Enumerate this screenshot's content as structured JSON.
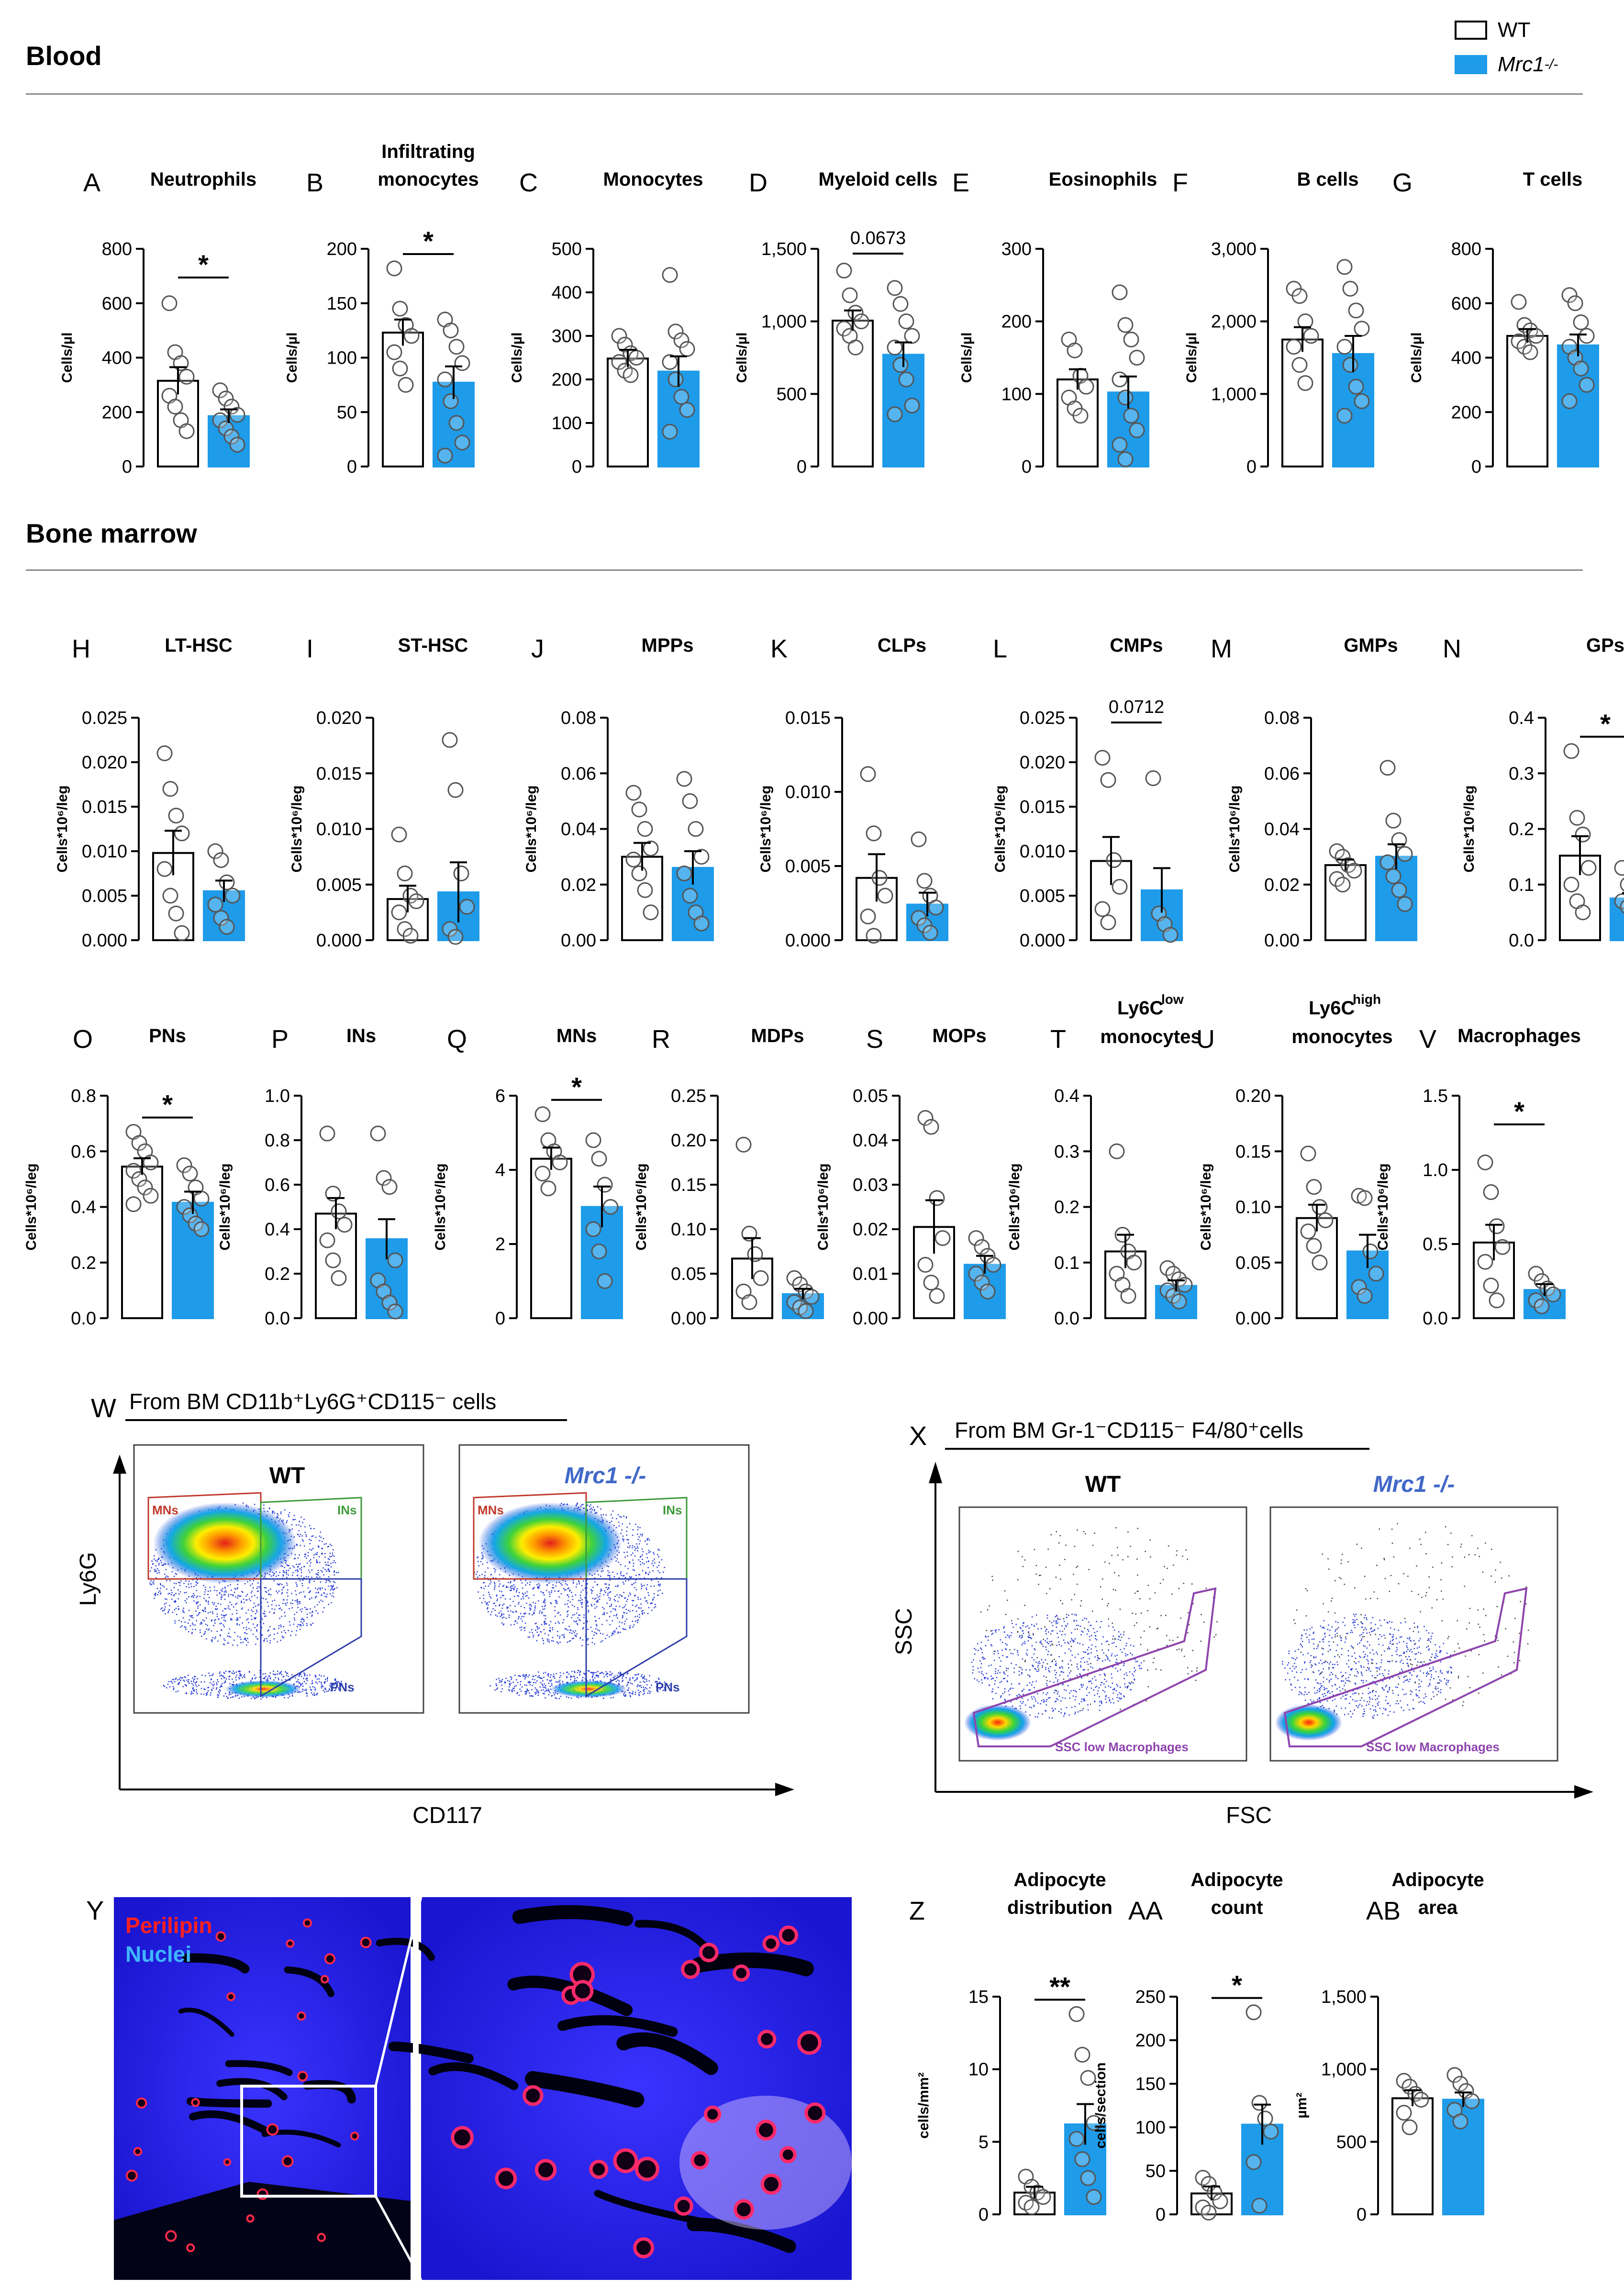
{
  "legend": {
    "wt": "WT",
    "ko_prefix": "Mrc1",
    "ko_sup": "-/-"
  },
  "colors": {
    "wt_fill": "#ffffff",
    "ko_fill": "#1e9be9",
    "edge": "#000000"
  },
  "sections": {
    "blood": "Blood",
    "bone_marrow": "Bone marrow"
  },
  "chart_data": [
    {
      "id": "A",
      "type": "bar",
      "title": [
        "Neutrophils"
      ],
      "ylabel": "Cells/µl",
      "ylim": [
        0,
        800
      ],
      "ticks": [
        "0",
        "200",
        "400",
        "600",
        "800"
      ],
      "categories": [
        "WT",
        "Mrc1-/-"
      ],
      "values": [
        315,
        185
      ],
      "errors": [
        50,
        25
      ],
      "points": [
        [
          600,
          420,
          380,
          330,
          260,
          220,
          170,
          130
        ],
        [
          280,
          250,
          220,
          190,
          170,
          140,
          110,
          80
        ]
      ],
      "sig": "*"
    },
    {
      "id": "B",
      "type": "bar",
      "title": [
        "Infiltrating",
        "monocytes"
      ],
      "ylabel": "Cells/µl",
      "ylim": [
        0,
        200
      ],
      "ticks": [
        "0",
        "50",
        "100",
        "150",
        "200"
      ],
      "categories": [
        "WT",
        "Mrc1-/-"
      ],
      "values": [
        123,
        77
      ],
      "errors": [
        12,
        15
      ],
      "points": [
        [
          182,
          145,
          130,
          120,
          105,
          90,
          75
        ],
        [
          135,
          125,
          110,
          95,
          80,
          60,
          40,
          22,
          10
        ]
      ],
      "sig": "*"
    },
    {
      "id": "C",
      "type": "bar",
      "title": [
        "Monocytes"
      ],
      "ylabel": "Cells/µl",
      "ylim": [
        0,
        500
      ],
      "ticks": [
        "0",
        "100",
        "200",
        "300",
        "400",
        "500"
      ],
      "categories": [
        "WT",
        "Mrc1-/-"
      ],
      "values": [
        248,
        218
      ],
      "errors": [
        20,
        35
      ],
      "points": [
        [
          300,
          280,
          260,
          250,
          240,
          220,
          210
        ],
        [
          440,
          310,
          290,
          270,
          240,
          200,
          160,
          130,
          80
        ]
      ],
      "sig": ""
    },
    {
      "id": "D",
      "type": "bar",
      "title": [
        "Myeloid cells"
      ],
      "ylabel": "Cells/µl",
      "ylim": [
        0,
        1500
      ],
      "ticks": [
        "0",
        "500",
        "1,000",
        "1,500"
      ],
      "categories": [
        "WT",
        "Mrc1-/-"
      ],
      "values": [
        1005,
        770
      ],
      "errors": [
        70,
        85
      ],
      "points": [
        [
          1350,
          1180,
          1060,
          1000,
          950,
          900,
          820
        ],
        [
          1230,
          1120,
          1000,
          900,
          820,
          700,
          600,
          420,
          360
        ]
      ],
      "sig": "0.0673"
    },
    {
      "id": "E",
      "type": "bar",
      "title": [
        "Eosinophils"
      ],
      "ylabel": "Cells/µl",
      "ylim": [
        0,
        300
      ],
      "ticks": [
        "0",
        "100",
        "200",
        "300"
      ],
      "categories": [
        "WT",
        "Mrc1-/-"
      ],
      "values": [
        120,
        102
      ],
      "errors": [
        14,
        22
      ],
      "points": [
        [
          175,
          160,
          125,
          110,
          95,
          80,
          70
        ],
        [
          240,
          195,
          175,
          150,
          120,
          95,
          70,
          50,
          30,
          10
        ]
      ],
      "sig": ""
    },
    {
      "id": "F",
      "type": "bar",
      "title": [
        "B cells"
      ],
      "ylabel": "Cells/µl",
      "ylim": [
        0,
        3000
      ],
      "ticks": [
        "0",
        "1,000",
        "2,000",
        "3,000"
      ],
      "categories": [
        "WT",
        "Mrc1-/-"
      ],
      "values": [
        1750,
        1550
      ],
      "errors": [
        170,
        250
      ],
      "points": [
        [
          2450,
          2350,
          2000,
          1800,
          1650,
          1400,
          1150
        ],
        [
          2750,
          2450,
          2150,
          1900,
          1650,
          1400,
          1100,
          900,
          700
        ]
      ],
      "sig": ""
    },
    {
      "id": "G",
      "type": "bar",
      "title": [
        "T cells"
      ],
      "ylabel": "Cells/µl",
      "ylim": [
        0,
        800
      ],
      "ticks": [
        "0",
        "200",
        "400",
        "600",
        "800"
      ],
      "categories": [
        "WT",
        "Mrc1-/-"
      ],
      "values": [
        480,
        445
      ],
      "errors": [
        25,
        40
      ],
      "points": [
        [
          605,
          520,
          500,
          480,
          460,
          440,
          420
        ],
        [
          630,
          600,
          530,
          480,
          440,
          400,
          360,
          300,
          240
        ]
      ],
      "sig": ""
    },
    {
      "id": "H",
      "type": "bar",
      "title": [
        "LT-HSC"
      ],
      "ylabel": "Cells*10⁶/leg",
      "ylim": [
        0,
        0.025
      ],
      "ticks": [
        "0.000",
        "0.005",
        "0.010",
        "0.015",
        "0.020",
        "0.025"
      ],
      "categories": [
        "WT",
        "Mrc1-/-"
      ],
      "values": [
        0.0098,
        0.0055
      ],
      "errors": [
        0.0025,
        0.0012
      ],
      "points": [
        [
          0.021,
          0.017,
          0.014,
          0.012,
          0.008,
          0.005,
          0.003,
          0.0008
        ],
        [
          0.01,
          0.009,
          0.0065,
          0.005,
          0.004,
          0.0025,
          0.0015
        ]
      ],
      "sig": ""
    },
    {
      "id": "I",
      "type": "bar",
      "title": [
        "ST-HSC"
      ],
      "ylabel": "Cells*10⁶/leg",
      "ylim": [
        0,
        0.02
      ],
      "ticks": [
        "0.000",
        "0.005",
        "0.010",
        "0.015",
        "0.020"
      ],
      "categories": [
        "WT",
        "Mrc1-/-"
      ],
      "values": [
        0.0037,
        0.0043
      ],
      "errors": [
        0.0012,
        0.0027
      ],
      "points": [
        [
          0.0095,
          0.006,
          0.004,
          0.0035,
          0.0025,
          0.001,
          0.0004
        ],
        [
          0.018,
          0.0135,
          0.006,
          0.003,
          0.001,
          0.0003
        ]
      ],
      "sig": ""
    },
    {
      "id": "J",
      "type": "bar",
      "title": [
        "MPPs"
      ],
      "ylabel": "Cells*10⁶/leg",
      "ylim": [
        0,
        0.08
      ],
      "ticks": [
        "0.00",
        "0.02",
        "0.04",
        "0.06",
        "0.08"
      ],
      "categories": [
        "WT",
        "Mrc1-/-"
      ],
      "values": [
        0.03,
        0.026
      ],
      "errors": [
        0.005,
        0.006
      ],
      "points": [
        [
          0.053,
          0.047,
          0.04,
          0.033,
          0.029,
          0.024,
          0.018,
          0.01
        ],
        [
          0.058,
          0.05,
          0.04,
          0.03,
          0.024,
          0.016,
          0.01,
          0.006
        ]
      ],
      "sig": ""
    },
    {
      "id": "K",
      "type": "bar",
      "title": [
        "CLPs"
      ],
      "ylabel": "Cells*10⁶/leg",
      "ylim": [
        0,
        0.015
      ],
      "ticks": [
        "0.000",
        "0.005",
        "0.010",
        "0.015"
      ],
      "categories": [
        "WT",
        "Mrc1-/-"
      ],
      "values": [
        0.0042,
        0.0024
      ],
      "errors": [
        0.0016,
        0.0008
      ],
      "points": [
        [
          0.0112,
          0.0072,
          0.0042,
          0.003,
          0.0016,
          0.0003
        ],
        [
          0.0068,
          0.004,
          0.003,
          0.0022,
          0.0015,
          0.001,
          0.0005
        ]
      ],
      "sig": ""
    },
    {
      "id": "L",
      "type": "bar",
      "title": [
        "CMPs"
      ],
      "ylabel": "Cells*10⁶/leg",
      "ylim": [
        0,
        0.025
      ],
      "ticks": [
        "0.000",
        "0.005",
        "0.010",
        "0.015",
        "0.020",
        "0.025"
      ],
      "categories": [
        "WT",
        "Mrc1-/-"
      ],
      "values": [
        0.0089,
        0.0056
      ],
      "errors": [
        0.0027,
        0.0025
      ],
      "points": [
        [
          0.0205,
          0.018,
          0.009,
          0.006,
          0.0035,
          0.002
        ],
        [
          0.0182,
          0.003,
          0.0018,
          0.0006
        ]
      ],
      "sig": "0.0712"
    },
    {
      "id": "M",
      "type": "bar",
      "title": [
        "GMPs"
      ],
      "ylabel": "Cells*10⁶/leg",
      "ylim": [
        0,
        0.08
      ],
      "ticks": [
        "0.00",
        "0.02",
        "0.04",
        "0.06",
        "0.08"
      ],
      "categories": [
        "WT",
        "Mrc1-/-"
      ],
      "values": [
        0.027,
        0.03
      ],
      "errors": [
        0.002,
        0.0045
      ],
      "points": [
        [
          0.032,
          0.03,
          0.027,
          0.025,
          0.022,
          0.02
        ],
        [
          0.062,
          0.043,
          0.036,
          0.031,
          0.028,
          0.023,
          0.018,
          0.013
        ]
      ],
      "sig": ""
    },
    {
      "id": "N",
      "type": "bar",
      "title": [
        "GPs"
      ],
      "ylabel": "Cells*10⁶/leg",
      "ylim": [
        0,
        0.4
      ],
      "ticks": [
        "0.0",
        "0.1",
        "0.2",
        "0.3",
        "0.4"
      ],
      "categories": [
        "WT",
        "Mrc1-/-"
      ],
      "values": [
        0.152,
        0.075
      ],
      "errors": [
        0.035,
        0.01
      ],
      "points": [
        [
          0.34,
          0.22,
          0.19,
          0.13,
          0.1,
          0.07,
          0.05
        ],
        [
          0.13,
          0.1,
          0.09,
          0.08,
          0.07,
          0.06,
          0.05,
          0.04
        ]
      ],
      "sig": "*"
    },
    {
      "id": "O",
      "type": "bar",
      "title": [
        "PNs"
      ],
      "ylabel": "Cells*10⁶/leg",
      "ylim": [
        0,
        0.8
      ],
      "ticks": [
        "0.0",
        "0.2",
        "0.4",
        "0.6",
        "0.8"
      ],
      "categories": [
        "WT",
        "Mrc1-/-"
      ],
      "values": [
        0.545,
        0.415
      ],
      "errors": [
        0.03,
        0.04
      ],
      "points": [
        [
          0.67,
          0.63,
          0.6,
          0.56,
          0.53,
          0.5,
          0.47,
          0.44,
          0.41
        ],
        [
          0.55,
          0.52,
          0.47,
          0.43,
          0.4,
          0.37,
          0.34,
          0.32
        ]
      ],
      "sig": "*"
    },
    {
      "id": "P",
      "type": "bar",
      "title": [
        "INs"
      ],
      "ylabel": "Cells*10⁶/leg",
      "ylim": [
        0,
        1.0
      ],
      "ticks": [
        "0.0",
        "0.2",
        "0.4",
        "0.6",
        "0.8",
        "1.0"
      ],
      "categories": [
        "WT",
        "Mrc1-/-"
      ],
      "values": [
        0.47,
        0.355
      ],
      "errors": [
        0.07,
        0.09
      ],
      "points": [
        [
          0.83,
          0.56,
          0.48,
          0.42,
          0.35,
          0.26,
          0.18
        ],
        [
          0.83,
          0.63,
          0.59,
          0.26,
          0.17,
          0.12,
          0.07,
          0.03
        ]
      ],
      "sig": ""
    },
    {
      "id": "Q",
      "type": "bar",
      "title": [
        "MNs"
      ],
      "ylabel": "Cells*10⁶/leg",
      "ylim": [
        0,
        6
      ],
      "ticks": [
        "0",
        "2",
        "4",
        "6"
      ],
      "categories": [
        "WT",
        "Mrc1-/-"
      ],
      "values": [
        4.3,
        3.0
      ],
      "errors": [
        0.3,
        0.55
      ],
      "points": [
        [
          5.5,
          4.8,
          4.5,
          4.2,
          3.9,
          3.5
        ],
        [
          4.8,
          4.3,
          3.6,
          3.0,
          2.4,
          1.8,
          1.0
        ]
      ],
      "sig": "*"
    },
    {
      "id": "R",
      "type": "bar",
      "title": [
        "MDPs"
      ],
      "ylabel": "Cells*10⁶/leg",
      "ylim": [
        0,
        0.25
      ],
      "ticks": [
        "0.00",
        "0.05",
        "0.10",
        "0.15",
        "0.20",
        "0.25"
      ],
      "categories": [
        "WT",
        "Mrc1-/-"
      ],
      "values": [
        0.067,
        0.027
      ],
      "errors": [
        0.023,
        0.006
      ],
      "points": [
        [
          0.195,
          0.095,
          0.072,
          0.045,
          0.03,
          0.018
        ],
        [
          0.045,
          0.038,
          0.03,
          0.024,
          0.018,
          0.012,
          0.008
        ]
      ],
      "sig": ""
    },
    {
      "id": "S",
      "type": "bar",
      "title": [
        "MOPs"
      ],
      "ylabel": "Cells*10⁶/leg",
      "ylim": [
        0,
        0.05
      ],
      "ticks": [
        "0.00",
        "0.01",
        "0.02",
        "0.03",
        "0.04",
        "0.05"
      ],
      "categories": [
        "WT",
        "Mrc1-/-"
      ],
      "values": [
        0.0205,
        0.012
      ],
      "errors": [
        0.006,
        0.002
      ],
      "points": [
        [
          0.045,
          0.043,
          0.027,
          0.018,
          0.012,
          0.008,
          0.005
        ],
        [
          0.018,
          0.016,
          0.014,
          0.012,
          0.01,
          0.008,
          0.006
        ]
      ],
      "sig": ""
    },
    {
      "id": "T",
      "type": "bar",
      "title": [
        "Ly6C",
        "low",
        "monocytes"
      ],
      "ylabel": "Cells*10⁶/leg",
      "ylim": [
        0,
        0.4
      ],
      "ticks": [
        "0.0",
        "0.1",
        "0.2",
        "0.3",
        "0.4"
      ],
      "categories": [
        "WT",
        "Mrc1-/-"
      ],
      "values": [
        0.12,
        0.058
      ],
      "errors": [
        0.03,
        0.01
      ],
      "points": [
        [
          0.3,
          0.15,
          0.12,
          0.1,
          0.08,
          0.06,
          0.04
        ],
        [
          0.09,
          0.08,
          0.07,
          0.06,
          0.05,
          0.04,
          0.03
        ]
      ],
      "sig": ""
    },
    {
      "id": "U",
      "type": "bar",
      "title": [
        "Ly6C",
        "high",
        "monocytes"
      ],
      "ylabel": "Cells*10⁶/leg",
      "ylim": [
        0,
        0.2
      ],
      "ticks": [
        "0.00",
        "0.05",
        "0.10",
        "0.15",
        "0.20"
      ],
      "categories": [
        "WT",
        "Mrc1-/-"
      ],
      "values": [
        0.09,
        0.06
      ],
      "errors": [
        0.012,
        0.015
      ],
      "points": [
        [
          0.148,
          0.118,
          0.1,
          0.088,
          0.078,
          0.065,
          0.05
        ],
        [
          0.11,
          0.108,
          0.06,
          0.04,
          0.028,
          0.02
        ]
      ],
      "sig": ""
    },
    {
      "id": "V",
      "type": "bar",
      "title": [
        "Macrophages"
      ],
      "ylabel": "Cells*10⁶/leg",
      "ylim": [
        0,
        1.5
      ],
      "ticks": [
        "0.0",
        "0.5",
        "1.0",
        "1.5"
      ],
      "categories": [
        "WT",
        "Mrc1-/-"
      ],
      "values": [
        0.51,
        0.19
      ],
      "errors": [
        0.12,
        0.04
      ],
      "points": [
        [
          1.05,
          0.85,
          0.62,
          0.48,
          0.38,
          0.22,
          0.12
        ],
        [
          0.3,
          0.25,
          0.2,
          0.16,
          0.12,
          0.08
        ]
      ],
      "sig": "*"
    },
    {
      "id": "Z",
      "type": "bar",
      "title": [
        "Adipocyte",
        "distribution"
      ],
      "ylabel": "cells/mm²",
      "ylim": [
        0,
        15
      ],
      "ticks": [
        "0",
        "5",
        "10",
        "15"
      ],
      "categories": [
        "WT",
        "Mrc1-/-"
      ],
      "values": [
        1.5,
        6.2
      ],
      "errors": [
        0.4,
        1.4
      ],
      "points": [
        [
          2.6,
          1.9,
          1.5,
          1.2,
          0.8,
          0.5
        ],
        [
          13.8,
          11.0,
          9.4,
          6.3,
          5.2,
          3.8,
          2.5,
          1.2
        ]
      ],
      "sig": "**"
    },
    {
      "id": "AA",
      "type": "bar",
      "title": [
        "Adipocyte",
        "count"
      ],
      "ylabel": "cells/section",
      "ylim": [
        0,
        250
      ],
      "ticks": [
        "0",
        "50",
        "100",
        "150",
        "200",
        "250"
      ],
      "categories": [
        "WT",
        "Mrc1-/-"
      ],
      "values": [
        24,
        103
      ],
      "errors": [
        8,
        23
      ],
      "points": [
        [
          42,
          35,
          25,
          15,
          8,
          2
        ],
        [
          232,
          128,
          110,
          95,
          60,
          10
        ]
      ],
      "sig": "*"
    },
    {
      "id": "AB",
      "type": "bar",
      "title": [
        "Adipocyte",
        "area"
      ],
      "ylabel": "µm²",
      "ylim": [
        0,
        1500
      ],
      "ticks": [
        "0",
        "500",
        "1,000",
        "1,500"
      ],
      "categories": [
        "WT",
        "Mrc1-/-"
      ],
      "values": [
        800,
        790
      ],
      "errors": [
        55,
        50
      ],
      "points": [
        [
          920,
          880,
          830,
          790,
          700,
          600
        ],
        [
          960,
          900,
          850,
          780,
          720,
          640
        ]
      ],
      "sig": ""
    }
  ],
  "flow": {
    "W": {
      "header": "From BM CD11b⁺Ly6G⁺CD115⁻ cells",
      "wt": "WT",
      "ko": "Mrc1 -/-",
      "xlabel": "CD117",
      "ylabel": "Ly6G",
      "gates": [
        "MNs",
        "INs",
        "PNs"
      ]
    },
    "X": {
      "header": "From BM Gr-1⁻CD115⁻ F4/80⁺cells",
      "wt": "WT",
      "ko": "Mrc1 -/-",
      "xlabel": "FSC",
      "ylabel": "SSC",
      "gates": [
        "SSC low Macrophages"
      ]
    }
  },
  "micro": {
    "perilipin": "Perilipin",
    "nuclei": "Nuclei"
  }
}
